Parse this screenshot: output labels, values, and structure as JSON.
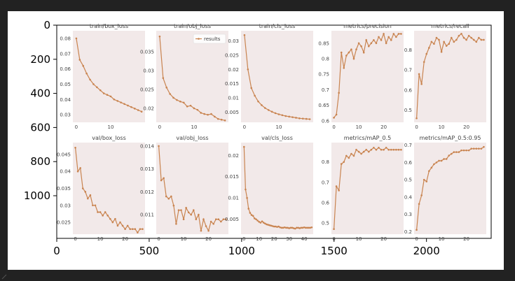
{
  "colors": {
    "page_background": "#222222",
    "frame_background": "#ffffff",
    "panel_background": "#f2e9e9",
    "series_line": "#c98450",
    "axis_text": "#000000",
    "panel_text": "#444444"
  },
  "chart_data": [
    {
      "type": "image_axes",
      "xlim": [
        0,
        2350
      ],
      "ylim": [
        1250,
        0
      ],
      "xticks": [
        0,
        500,
        1000,
        1500,
        2000
      ],
      "yticks": [
        0,
        200,
        400,
        600,
        800,
        1000
      ],
      "grid": false
    },
    {
      "type": "line",
      "title": "train/box_loss",
      "x": [
        0,
        1,
        2,
        3,
        4,
        5,
        6,
        7,
        8,
        9,
        10,
        11,
        12,
        13,
        14,
        15,
        16,
        17,
        18,
        19
      ],
      "series": [
        {
          "values": [
            0.08,
            0.066,
            0.062,
            0.057,
            0.053,
            0.05,
            0.048,
            0.046,
            0.044,
            0.043,
            0.042,
            0.04,
            0.039,
            0.038,
            0.037,
            0.036,
            0.035,
            0.034,
            0.033,
            0.032
          ]
        }
      ],
      "xticks": [
        0,
        10
      ],
      "yticks": [
        0.03,
        0.04,
        0.05,
        0.06,
        0.07,
        0.08
      ],
      "ylim": [
        0.025,
        0.085
      ],
      "xlim": [
        -1,
        20
      ]
    },
    {
      "type": "line",
      "title": "train/obj_loss",
      "x": [
        0,
        1,
        2,
        3,
        4,
        5,
        6,
        7,
        8,
        9,
        10,
        11,
        12,
        13,
        14,
        15,
        16,
        17,
        18,
        19
      ],
      "series": [
        {
          "name": "results",
          "values": [
            0.039,
            0.028,
            0.0255,
            0.0238,
            0.0228,
            0.0222,
            0.0218,
            0.0215,
            0.0205,
            0.0207,
            0.02,
            0.0196,
            0.0188,
            0.0185,
            0.0183,
            0.0185,
            0.0178,
            0.0172,
            0.017,
            0.0168
          ]
        }
      ],
      "xticks": [
        0,
        10
      ],
      "yticks": [
        0.02,
        0.025,
        0.03,
        0.035
      ],
      "ylim": [
        0.0163,
        0.0405
      ],
      "xlim": [
        -1,
        20
      ],
      "legend": "top-right"
    },
    {
      "type": "line",
      "title": "train/cls_loss",
      "x": [
        0,
        1,
        2,
        3,
        4,
        5,
        6,
        7,
        8,
        9,
        10,
        11,
        12,
        13,
        14,
        15,
        16,
        17,
        18,
        19
      ],
      "series": [
        {
          "values": [
            0.032,
            0.02,
            0.0135,
            0.0108,
            0.0088,
            0.0075,
            0.0065,
            0.0058,
            0.0052,
            0.0047,
            0.0043,
            0.004,
            0.0037,
            0.0035,
            0.0033,
            0.0031,
            0.0029,
            0.0028,
            0.0027,
            0.0026
          ]
        }
      ],
      "xticks": [
        0,
        10
      ],
      "yticks": [
        0.005,
        0.01,
        0.015,
        0.02,
        0.025,
        0.03
      ],
      "ylim": [
        0.0015,
        0.0335
      ],
      "xlim": [
        -1,
        20
      ]
    },
    {
      "type": "line",
      "title": "metrics/precision",
      "x": [
        0,
        1,
        2,
        3,
        4,
        5,
        6,
        7,
        8,
        9,
        10,
        11,
        12,
        13,
        14,
        15,
        16,
        17,
        18,
        19,
        20,
        21,
        22,
        23,
        24,
        25,
        26,
        27
      ],
      "series": [
        {
          "values": [
            0.61,
            0.62,
            0.69,
            0.82,
            0.77,
            0.81,
            0.82,
            0.83,
            0.8,
            0.83,
            0.85,
            0.84,
            0.82,
            0.86,
            0.84,
            0.85,
            0.86,
            0.85,
            0.87,
            0.86,
            0.88,
            0.85,
            0.87,
            0.86,
            0.88,
            0.87,
            0.88,
            0.88
          ]
        }
      ],
      "xticks": [
        0,
        10,
        20
      ],
      "yticks": [
        0.6,
        0.65,
        0.7,
        0.75,
        0.8,
        0.85
      ],
      "ylim": [
        0.595,
        0.89
      ],
      "xlim": [
        -1,
        28
      ]
    },
    {
      "type": "line",
      "title": "metrics/recall",
      "x": [
        0,
        1,
        2,
        3,
        4,
        5,
        6,
        7,
        8,
        9,
        10,
        11,
        12,
        13,
        14,
        15,
        16,
        17,
        18,
        19,
        20,
        21,
        22,
        23,
        24,
        25,
        26,
        27
      ],
      "series": [
        {
          "values": [
            0.46,
            0.68,
            0.63,
            0.74,
            0.78,
            0.81,
            0.84,
            0.83,
            0.86,
            0.85,
            0.79,
            0.84,
            0.82,
            0.83,
            0.86,
            0.84,
            0.85,
            0.87,
            0.88,
            0.86,
            0.85,
            0.87,
            0.86,
            0.85,
            0.84,
            0.86,
            0.85,
            0.85
          ]
        }
      ],
      "xticks": [
        0,
        10,
        20
      ],
      "yticks": [
        0.5,
        0.6,
        0.7,
        0.8
      ],
      "ylim": [
        0.44,
        0.895
      ],
      "xlim": [
        -1,
        28
      ]
    },
    {
      "type": "line",
      "title": "val/box_loss",
      "x": [
        0,
        1,
        2,
        3,
        4,
        5,
        6,
        7,
        8,
        9,
        10,
        11,
        12,
        13,
        14,
        15,
        16,
        17,
        18,
        19,
        20,
        21,
        22,
        23,
        24,
        25,
        26,
        27
      ],
      "series": [
        {
          "values": [
            0.047,
            0.04,
            0.041,
            0.035,
            0.034,
            0.032,
            0.033,
            0.03,
            0.03,
            0.028,
            0.028,
            0.027,
            0.028,
            0.027,
            0.026,
            0.025,
            0.026,
            0.024,
            0.025,
            0.024,
            0.023,
            0.024,
            0.023,
            0.023,
            0.023,
            0.022,
            0.023,
            0.023
          ]
        }
      ],
      "xticks": [
        0,
        10,
        20
      ],
      "yticks": [
        0.025,
        0.03,
        0.035,
        0.04,
        0.045
      ],
      "ylim": [
        0.0215,
        0.0485
      ],
      "xlim": [
        -1,
        28
      ]
    },
    {
      "type": "line",
      "title": "val/obj_loss",
      "x": [
        0,
        1,
        2,
        3,
        4,
        5,
        6,
        7,
        8,
        9,
        10,
        11,
        12,
        13,
        14,
        15,
        16,
        17,
        18,
        19,
        20,
        21,
        22,
        23,
        24,
        25,
        26,
        27
      ],
      "series": [
        {
          "values": [
            0.014,
            0.0125,
            0.0126,
            0.0118,
            0.0117,
            0.0118,
            0.0114,
            0.0106,
            0.0112,
            0.0112,
            0.0108,
            0.0113,
            0.0111,
            0.011,
            0.0112,
            0.0108,
            0.011,
            0.0103,
            0.0108,
            0.0105,
            0.0103,
            0.0107,
            0.0106,
            0.0108,
            0.0108,
            0.0107,
            0.0108,
            0.0108
          ]
        }
      ],
      "xticks": [
        0,
        10,
        20
      ],
      "yticks": [
        0.011,
        0.012,
        0.013,
        0.014
      ],
      "ylim": [
        0.01015,
        0.01415
      ],
      "xlim": [
        -1,
        28
      ]
    },
    {
      "type": "line",
      "title": "val/cls_loss",
      "x": [
        0,
        1,
        2,
        3,
        4,
        5,
        6,
        7,
        8,
        9,
        10,
        11,
        12,
        13,
        14,
        15,
        16,
        17,
        18,
        19,
        20,
        21,
        22,
        23,
        24,
        25,
        26,
        27,
        28,
        29,
        30,
        31,
        32,
        33,
        34,
        35,
        36,
        37,
        38,
        39,
        40,
        41,
        42,
        43,
        44,
        45
      ],
      "series": [
        {
          "values": [
            0.022,
            0.012,
            0.01,
            0.0075,
            0.0065,
            0.006,
            0.0058,
            0.0052,
            0.005,
            0.0047,
            0.0044,
            0.0042,
            0.0045,
            0.0042,
            0.004,
            0.0038,
            0.0037,
            0.0036,
            0.0035,
            0.0034,
            0.0033,
            0.0033,
            0.0032,
            0.0033,
            0.0031,
            0.003,
            0.003,
            0.0031,
            0.003,
            0.003,
            0.0029,
            0.003,
            0.003,
            0.0029,
            0.0028,
            0.003,
            0.003,
            0.0029,
            0.003,
            0.003,
            0.0031,
            0.003,
            0.003,
            0.003,
            0.003,
            0.0031
          ]
        }
      ],
      "xticks": [
        0,
        10,
        20,
        30,
        40
      ],
      "yticks": [
        0.005,
        0.01,
        0.015,
        0.02
      ],
      "ylim": [
        0.0015,
        0.023
      ],
      "xlim": [
        -2,
        46
      ]
    },
    {
      "type": "line",
      "title": "metrics/mAP_0.5",
      "x": [
        0,
        1,
        2,
        3,
        4,
        5,
        6,
        7,
        8,
        9,
        10,
        11,
        12,
        13,
        14,
        15,
        16,
        17,
        18,
        19,
        20,
        21,
        22,
        23,
        24,
        25,
        26,
        27
      ],
      "series": [
        {
          "values": [
            0.47,
            0.68,
            0.66,
            0.79,
            0.8,
            0.83,
            0.82,
            0.84,
            0.83,
            0.86,
            0.85,
            0.84,
            0.85,
            0.86,
            0.85,
            0.86,
            0.87,
            0.86,
            0.87,
            0.86,
            0.86,
            0.87,
            0.86,
            0.86,
            0.86,
            0.86,
            0.86,
            0.86
          ]
        }
      ],
      "xticks": [
        0,
        10,
        20
      ],
      "yticks": [
        0.5,
        0.6,
        0.7,
        0.8
      ],
      "ylim": [
        0.445,
        0.895
      ],
      "xlim": [
        -1,
        28
      ]
    },
    {
      "type": "line",
      "title": "metrics/mAP_0.5:0.95",
      "x": [
        0,
        1,
        2,
        3,
        4,
        5,
        6,
        7,
        8,
        9,
        10,
        11,
        12,
        13,
        14,
        15,
        16,
        17,
        18,
        19,
        20,
        21,
        22,
        23,
        24,
        25,
        26,
        27
      ],
      "series": [
        {
          "values": [
            0.21,
            0.36,
            0.41,
            0.5,
            0.49,
            0.55,
            0.57,
            0.59,
            0.6,
            0.61,
            0.61,
            0.62,
            0.62,
            0.64,
            0.65,
            0.66,
            0.66,
            0.66,
            0.67,
            0.67,
            0.67,
            0.67,
            0.68,
            0.68,
            0.68,
            0.68,
            0.68,
            0.69
          ]
        }
      ],
      "xticks": [
        0,
        10,
        20
      ],
      "yticks": [
        0.2,
        0.3,
        0.4,
        0.5,
        0.6,
        0.7
      ],
      "ylim": [
        0.185,
        0.715
      ],
      "xlim": [
        -1,
        28
      ]
    }
  ]
}
